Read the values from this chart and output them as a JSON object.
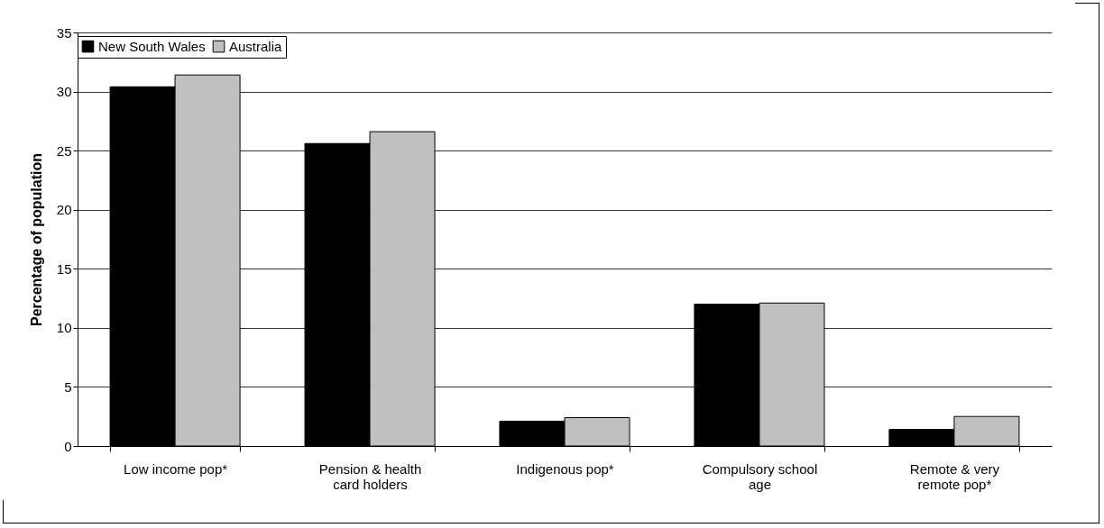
{
  "chart_data": {
    "type": "bar",
    "ylabel": "Percentage of population",
    "categories": [
      "Low income pop*",
      "Pension & health card holders",
      "Indigenous pop*",
      "Compulsory school age",
      "Remote & very remote pop*"
    ],
    "series": [
      {
        "name": "New South Wales",
        "color": "#000000",
        "values": [
          30.4,
          25.6,
          2.1,
          12.0,
          1.4
        ]
      },
      {
        "name": "Australia",
        "color": "#c0c0c0",
        "values": [
          31.4,
          26.6,
          2.4,
          12.1,
          2.5
        ]
      }
    ],
    "ylim": [
      0,
      35
    ],
    "yticks": [
      0,
      5,
      10,
      15,
      20,
      25,
      30,
      35
    ],
    "grid": "y",
    "legend": "top"
  }
}
